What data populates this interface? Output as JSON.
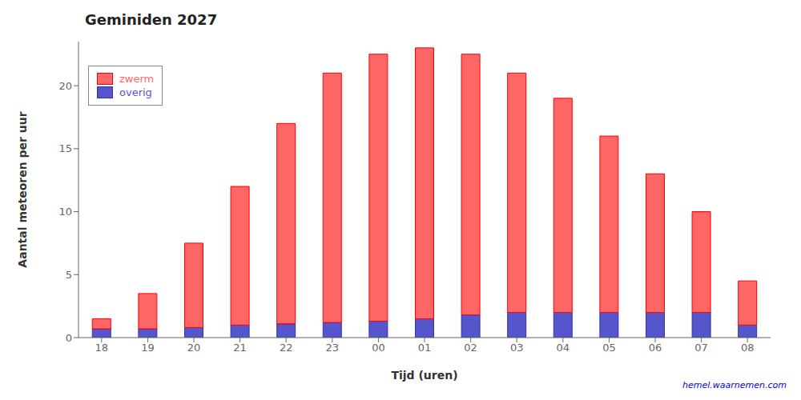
{
  "chart_data": {
    "type": "bar",
    "stacked": true,
    "title": "Geminiden 2027",
    "x_label": "Tijd (uren)",
    "y_label": "Aantal meteoren per uur",
    "categories": [
      "18",
      "19",
      "20",
      "21",
      "22",
      "23",
      "00",
      "01",
      "02",
      "03",
      "04",
      "05",
      "06",
      "07",
      "08"
    ],
    "series": [
      {
        "name": "overig",
        "color": "#5555CC",
        "edge_color": "#3333AA",
        "values": [
          0.7,
          0.7,
          0.8,
          1.0,
          1.1,
          1.2,
          1.3,
          1.5,
          1.8,
          2.0,
          2.0,
          2.0,
          2.0,
          2.0,
          1.0
        ]
      },
      {
        "name": "zwerm",
        "color": "#FF6666",
        "edge_color": "#FF0000",
        "values": [
          0.8,
          2.8,
          6.7,
          11.0,
          15.9,
          19.8,
          21.2,
          21.5,
          20.7,
          19.0,
          17.0,
          14.0,
          11.0,
          8.0,
          3.5
        ]
      }
    ],
    "ylim": [
      0,
      23.5
    ],
    "yticks": [
      0,
      5,
      10,
      15,
      20
    ],
    "grid": false,
    "legend": "upper left",
    "annotations": [
      {
        "text": "hemel.waarnemen.com",
        "color": "#0000EE"
      }
    ]
  }
}
